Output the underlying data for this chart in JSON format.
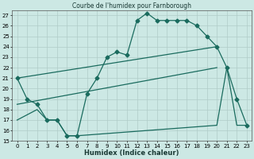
{
  "title": "Courbe de l'humidex pour Farnborough",
  "xlabel": "Humidex (Indice chaleur)",
  "xlim": [
    -0.5,
    23.5
  ],
  "ylim": [
    15,
    27.5
  ],
  "yticks": [
    15,
    16,
    17,
    18,
    19,
    20,
    21,
    22,
    23,
    24,
    25,
    26,
    27
  ],
  "xticks": [
    0,
    1,
    2,
    3,
    4,
    5,
    6,
    7,
    8,
    9,
    10,
    11,
    12,
    13,
    14,
    15,
    16,
    17,
    18,
    19,
    20,
    21,
    22,
    23
  ],
  "bg_color": "#cce8e4",
  "grid_color": "#b0ccc8",
  "line_color": "#1a6b5e",
  "line1_x": [
    0,
    1,
    2,
    3,
    4,
    5,
    6,
    7,
    8,
    9,
    10,
    11,
    12,
    13,
    14,
    15,
    16,
    17,
    18,
    19,
    20,
    21,
    22,
    23
  ],
  "line1_y": [
    21,
    19,
    18.5,
    17,
    17,
    15.5,
    15.5,
    19.5,
    21,
    23,
    23.5,
    23.2,
    26.5,
    27.2,
    26.5,
    26.5,
    26.5,
    26.5,
    26,
    25,
    24,
    22,
    19,
    16.5
  ],
  "line2_x": [
    0,
    20
  ],
  "line2_y": [
    21,
    24
  ],
  "line3_x": [
    0,
    20
  ],
  "line3_y": [
    18.5,
    22
  ],
  "line4_x": [
    0,
    2,
    3,
    4,
    5,
    6,
    20,
    21,
    22,
    23
  ],
  "line4_y": [
    17,
    18,
    17,
    17,
    15.5,
    15.5,
    16.5,
    22,
    16.5,
    16.5
  ],
  "marker": "D",
  "markersize": 2.5,
  "linewidth": 0.9
}
